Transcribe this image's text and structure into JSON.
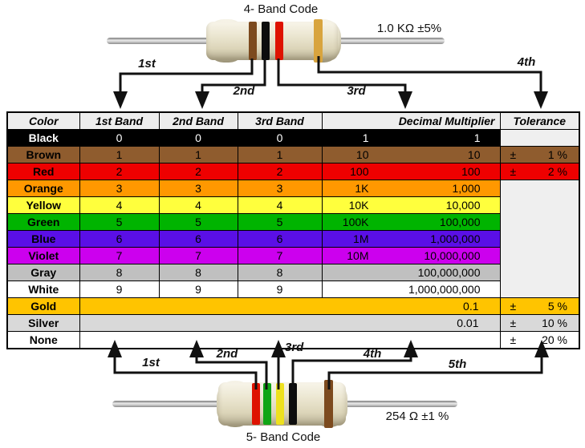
{
  "top_resistor": {
    "title": "4- Band Code",
    "value_label": "1.0 KΩ  ±5%",
    "bands": [
      "brown",
      "black",
      "red",
      "gold"
    ],
    "arrows": [
      {
        "label": "1st"
      },
      {
        "label": "2nd"
      },
      {
        "label": "3rd"
      },
      {
        "label": "4th"
      }
    ]
  },
  "bottom_resistor": {
    "title": "5- Band Code",
    "value_label": "254 Ω  ±1 %",
    "bands": [
      "red",
      "green",
      "yellow",
      "black",
      "brown"
    ],
    "arrows": [
      {
        "label": "1st"
      },
      {
        "label": "2nd"
      },
      {
        "label": "3rd"
      },
      {
        "label": "4th"
      },
      {
        "label": "5th"
      }
    ]
  },
  "band_palette": {
    "brown": "#7c4a1e",
    "black": "#0d0d0d",
    "red": "#de1200",
    "gold": "#d8a43e",
    "green": "#0fa515",
    "yellow": "#eee11e"
  },
  "table": {
    "headers": [
      "Color",
      "1st Band",
      "2nd Band",
      "3rd Band",
      "Decimal Multiplier",
      "Tolerance"
    ],
    "empty_cell_bg": "#efefef",
    "header_bg": "#ededed",
    "rows": [
      {
        "name": "Black",
        "bg": "#000000",
        "fg": "#ffffff",
        "digits": [
          "0",
          "0",
          "0"
        ],
        "mult_short": "1",
        "mult_long": "1",
        "tol_mode": "empty"
      },
      {
        "name": "Brown",
        "bg": "#8f5c2e",
        "fg": "#000000",
        "digits": [
          "1",
          "1",
          "1"
        ],
        "mult_short": "10",
        "mult_long": "10",
        "tol_mode": "value",
        "tol_pm": "±",
        "tol_val": "1 %"
      },
      {
        "name": "Red",
        "bg": "#ee0000",
        "fg": "#000000",
        "digits": [
          "2",
          "2",
          "2"
        ],
        "mult_short": "100",
        "mult_long": "100",
        "tol_mode": "value",
        "tol_pm": "±",
        "tol_val": "2 %"
      },
      {
        "name": "Orange",
        "bg": "#ff9800",
        "fg": "#000000",
        "digits": [
          "3",
          "3",
          "3"
        ],
        "mult_short": "1K",
        "mult_long": "1,000",
        "tol_mode": "span"
      },
      {
        "name": "Yellow",
        "bg": "#ffff3d",
        "fg": "#000000",
        "digits": [
          "4",
          "4",
          "4"
        ],
        "mult_short": "10K",
        "mult_long": "10,000",
        "tol_mode": "skip"
      },
      {
        "name": "Green",
        "bg": "#00b400",
        "fg": "#000000",
        "digits": [
          "5",
          "5",
          "5"
        ],
        "mult_short": "100K",
        "mult_long": "100,000",
        "tol_mode": "skip"
      },
      {
        "name": "Blue",
        "bg": "#5a0fe6",
        "fg": "#000000",
        "digits": [
          "6",
          "6",
          "6"
        ],
        "mult_short": "1M",
        "mult_long": "1,000,000",
        "tol_mode": "skip"
      },
      {
        "name": "Violet",
        "bg": "#cc00ee",
        "fg": "#000000",
        "digits": [
          "7",
          "7",
          "7"
        ],
        "mult_short": "10M",
        "mult_long": "10,000,000",
        "tol_mode": "skip"
      },
      {
        "name": "Gray",
        "bg": "#c0c0c0",
        "fg": "#000000",
        "digits": [
          "8",
          "8",
          "8"
        ],
        "mult_wide": "100,000,000",
        "tol_mode": "skip"
      },
      {
        "name": "White",
        "bg": "#ffffff",
        "fg": "#000000",
        "digits": [
          "9",
          "9",
          "9"
        ],
        "mult_wide": "1,000,000,000",
        "tol_mode": "skip"
      },
      {
        "name": "Gold",
        "bg": "#ffc400",
        "fg": "#000000",
        "merged": "0.1",
        "tol_mode": "value",
        "tol_pm": "±",
        "tol_val": "5 %"
      },
      {
        "name": "Silver",
        "bg": "#d9d9d9",
        "fg": "#000000",
        "merged": "0.01",
        "tol_mode": "value",
        "tol_pm": "±",
        "tol_val": "10 %"
      },
      {
        "name": "None",
        "bg": "#ffffff",
        "fg": "#000000",
        "merged": "",
        "tol_mode": "value",
        "tol_pm": "±",
        "tol_val": "20 %"
      }
    ]
  }
}
